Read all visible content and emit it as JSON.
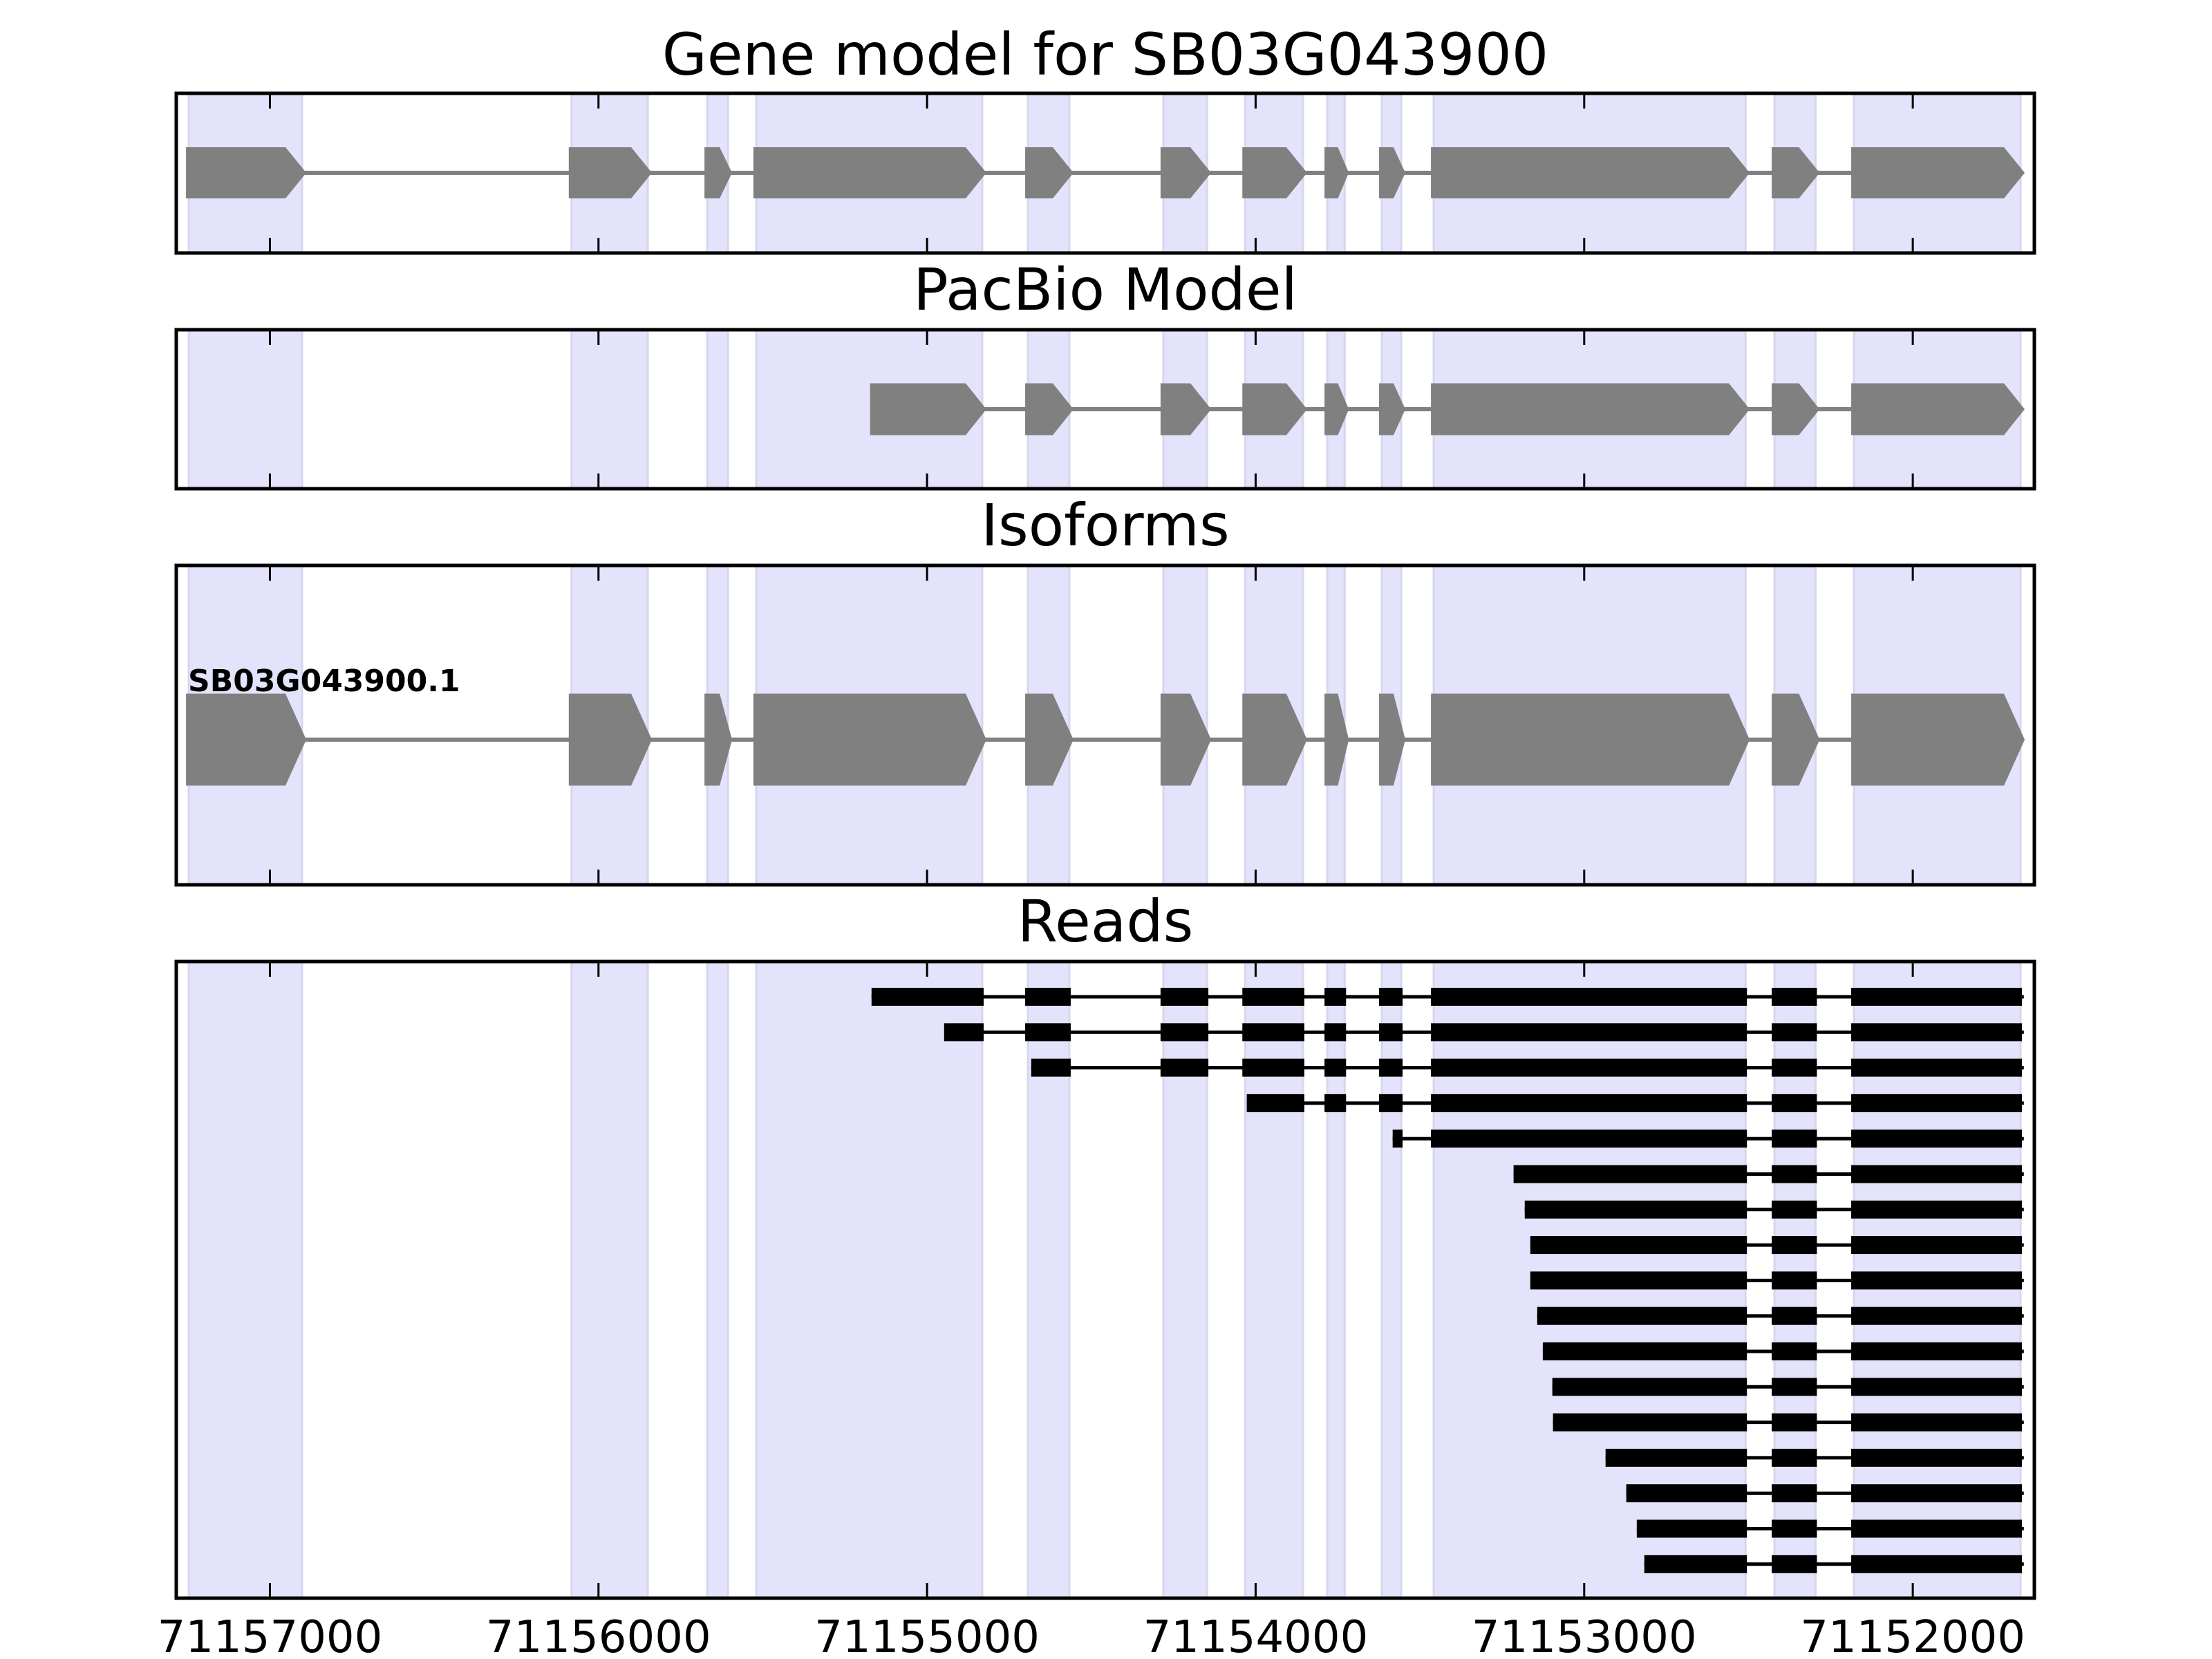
{
  "chart_data": {
    "type": "gene-track",
    "xlim": [
      71157285,
      71151630
    ],
    "x_ticks": [
      71157000,
      71156000,
      71155000,
      71154000,
      71153000,
      71152000
    ],
    "x_tick_labels": [
      "71157000",
      "71156000",
      "71155000",
      "71154000",
      "71153000",
      "71152000"
    ],
    "colors": {
      "exon_shade": "#e3e3fb",
      "shade_edge": "#d6d6ee",
      "model_fill": "#808080",
      "read_fill": "#000000",
      "frame": "#000000"
    },
    "exons": [
      [
        71157247,
        71156902
      ],
      [
        71156082,
        71155850
      ],
      [
        71155669,
        71155606
      ],
      [
        71155520,
        71154832
      ],
      [
        71154693,
        71154567
      ],
      [
        71154281,
        71154148
      ],
      [
        71154032,
        71153856
      ],
      [
        71153782,
        71153729
      ],
      [
        71153616,
        71153557
      ],
      [
        71153458,
        71152509
      ],
      [
        71152421,
        71152296
      ],
      [
        71152179,
        71151672
      ]
    ],
    "panels": [
      {
        "key": "gene",
        "title": "Gene model for SB03G043900",
        "model_start": 71157247,
        "model_end": 71151672
      },
      {
        "key": "pacbio",
        "title": "PacBio Model",
        "model_start": 71155165,
        "model_end": 71151672
      },
      {
        "key": "isoforms",
        "title": "Isoforms",
        "isoforms": [
          {
            "name": "SB03G043900.1",
            "model_start": 71157247,
            "model_end": 71151672
          }
        ]
      },
      {
        "key": "reads",
        "title": "Reads"
      }
    ],
    "reads": [
      {
        "start": 71155169,
        "end": 71151662
      },
      {
        "start": 71154948,
        "end": 71151662
      },
      {
        "start": 71154683,
        "end": 71151662
      },
      {
        "start": 71154027,
        "end": 71151662
      },
      {
        "start": 71153583,
        "end": 71151662
      },
      {
        "start": 71153215,
        "end": 71151662
      },
      {
        "start": 71153181,
        "end": 71151662
      },
      {
        "start": 71153164,
        "end": 71151662
      },
      {
        "start": 71153164,
        "end": 71151662
      },
      {
        "start": 71153143,
        "end": 71151662
      },
      {
        "start": 71153126,
        "end": 71151662
      },
      {
        "start": 71153097,
        "end": 71151662
      },
      {
        "start": 71153095,
        "end": 71151662
      },
      {
        "start": 71152935,
        "end": 71151662
      },
      {
        "start": 71152872,
        "end": 71151662
      },
      {
        "start": 71152840,
        "end": 71151662
      },
      {
        "start": 71152817,
        "end": 71151662
      }
    ]
  }
}
